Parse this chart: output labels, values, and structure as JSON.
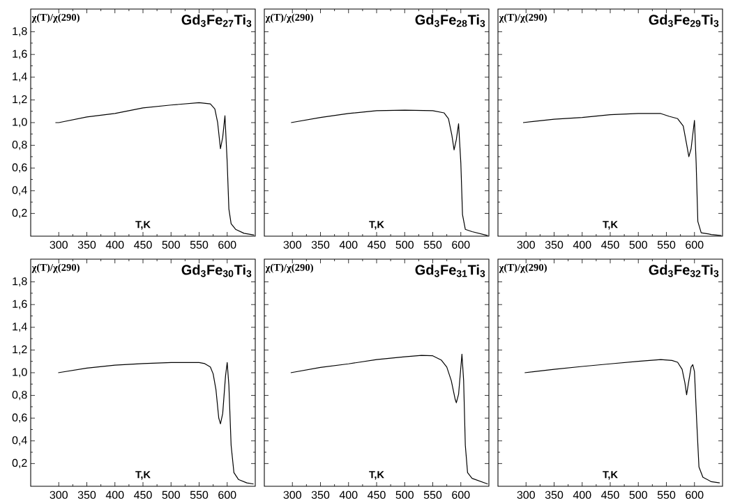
{
  "chart_data": [
    {
      "type": "line",
      "title": "Gd$_{3}$Fe$_{27}$Ti$_{3}$",
      "xlabel": "T,K",
      "ylabel": "χ(T)/χ(290)",
      "color": "#000000",
      "x": [
        294,
        300,
        350,
        400,
        450,
        500,
        550,
        560,
        570,
        578,
        583,
        588,
        592,
        596,
        600,
        603,
        607,
        615,
        630,
        648
      ],
      "values": [
        1.0,
        1.0,
        1.05,
        1.08,
        1.13,
        1.155,
        1.175,
        1.17,
        1.165,
        1.12,
        1.0,
        0.77,
        0.87,
        1.06,
        0.65,
        0.24,
        0.11,
        0.06,
        0.025,
        0.01
      ],
      "xlim": [
        250,
        650
      ],
      "ylim": [
        0,
        2
      ],
      "xticks": [
        300,
        350,
        400,
        450,
        500,
        550,
        600
      ],
      "yticks": [
        {
          "value": 0.2,
          "label": "0,2"
        },
        {
          "value": 0.4,
          "label": "0,4"
        },
        {
          "value": 0.6,
          "label": "0,6"
        },
        {
          "value": 0.8,
          "label": "0,8"
        },
        {
          "value": 1.0,
          "label": "1,0"
        },
        {
          "value": 1.2,
          "label": "1,2"
        },
        {
          "value": 1.4,
          "label": "1,4"
        },
        {
          "value": 1.6,
          "label": "1,6"
        },
        {
          "value": 1.8,
          "label": "1,8"
        }
      ]
    },
    {
      "type": "line",
      "title": "Gd$_{3}$Fe$_{28}$Ti$_{3}$",
      "xlabel": "T,K",
      "ylabel": "χ(T)/χ(290)",
      "color": "#000000",
      "x": [
        297.6,
        350,
        400,
        450,
        500,
        550,
        570,
        578,
        584,
        588,
        592,
        596,
        600,
        603,
        608,
        620,
        648
      ],
      "values": [
        1.0,
        1.045,
        1.08,
        1.105,
        1.11,
        1.105,
        1.086,
        1.035,
        0.89,
        0.76,
        0.85,
        0.99,
        0.645,
        0.19,
        0.06,
        0.04,
        0.005
      ],
      "xlim": [
        250,
        650
      ],
      "ylim": [
        0,
        2
      ],
      "xticks": [
        300,
        350,
        400,
        450,
        500,
        550,
        600
      ],
      "yticks": [
        {
          "value": 0.2,
          "label": null
        },
        {
          "value": 0.4,
          "label": null
        },
        {
          "value": 0.6,
          "label": null
        },
        {
          "value": 0.8,
          "label": null
        },
        {
          "value": 1.0,
          "label": null
        },
        {
          "value": 1.2,
          "label": null
        },
        {
          "value": 1.4,
          "label": null
        },
        {
          "value": 1.6,
          "label": null
        },
        {
          "value": 1.8,
          "label": null
        }
      ],
      "tick_labels": "x"
    },
    {
      "type": "line",
      "title": "Gd$_{3}$Fe$_{29}$Ti$_{3}$",
      "xlabel": "T,K",
      "ylabel": "χ(T)/χ(290)",
      "color": "#000000",
      "x": [
        294.7,
        350,
        400,
        450,
        500,
        540,
        555,
        570,
        580,
        586,
        590,
        594,
        600,
        603,
        606,
        612,
        630,
        648
      ],
      "values": [
        1.0,
        1.03,
        1.045,
        1.07,
        1.08,
        1.08,
        1.055,
        1.035,
        0.97,
        0.81,
        0.7,
        0.77,
        1.02,
        0.645,
        0.13,
        0.03,
        0.015,
        0.005
      ],
      "xlim": [
        250,
        650
      ],
      "ylim": [
        0,
        2
      ],
      "xticks": [
        300,
        350,
        400,
        450,
        500,
        550,
        600
      ],
      "yticks": [
        {
          "value": 0.2,
          "label": null
        },
        {
          "value": 0.4,
          "label": null
        },
        {
          "value": 0.6,
          "label": null
        },
        {
          "value": 0.8,
          "label": null
        },
        {
          "value": 1.0,
          "label": null
        },
        {
          "value": 1.2,
          "label": null
        },
        {
          "value": 1.4,
          "label": null
        },
        {
          "value": 1.6,
          "label": null
        },
        {
          "value": 1.8,
          "label": null
        }
      ],
      "tick_labels": "x"
    },
    {
      "type": "line",
      "title": "Gd$_{3}$Fe$_{30}$Ti$_{3}$",
      "xlabel": "T,K",
      "ylabel": "χ(T)/χ(290)",
      "color": "#000000",
      "x": [
        299,
        350,
        400,
        450,
        500,
        550,
        560,
        570,
        575,
        580,
        585,
        588,
        592,
        597,
        600,
        603,
        607,
        612,
        620,
        635,
        647
      ],
      "values": [
        1.0,
        1.04,
        1.067,
        1.08,
        1.09,
        1.09,
        1.08,
        1.05,
        0.99,
        0.85,
        0.6,
        0.55,
        0.64,
        0.97,
        1.09,
        0.89,
        0.36,
        0.12,
        0.06,
        0.03,
        0.02
      ],
      "xlim": [
        250,
        650
      ],
      "ylim": [
        0,
        2
      ],
      "xticks": [
        300,
        350,
        400,
        450,
        500,
        550,
        600
      ],
      "yticks": [
        {
          "value": 0.2,
          "label": "0,2"
        },
        {
          "value": 0.4,
          "label": "0,4"
        },
        {
          "value": 0.6,
          "label": "0,6"
        },
        {
          "value": 0.8,
          "label": "0,8"
        },
        {
          "value": 1.0,
          "label": "1,0"
        },
        {
          "value": 1.2,
          "label": "1,2"
        },
        {
          "value": 1.4,
          "label": "1,4"
        },
        {
          "value": 1.6,
          "label": "1,6"
        },
        {
          "value": 1.8,
          "label": "1,8"
        }
      ]
    },
    {
      "type": "line",
      "title": "Gd$_{3}$Fe$_{31}$Ti$_{3}$",
      "xlabel": "T,K",
      "ylabel": "χ(T)/χ(290)",
      "color": "#000000",
      "x": [
        297,
        350,
        400,
        450,
        500,
        530,
        550,
        565,
        575,
        583,
        590,
        592,
        596,
        602,
        605,
        608,
        612,
        620,
        648
      ],
      "values": [
        1.0,
        1.047,
        1.078,
        1.116,
        1.14,
        1.153,
        1.149,
        1.112,
        1.05,
        0.93,
        0.765,
        0.735,
        0.81,
        1.163,
        0.93,
        0.36,
        0.12,
        0.07,
        0.02
      ],
      "xlim": [
        250,
        650
      ],
      "ylim": [
        0,
        2
      ],
      "xticks": [
        300,
        350,
        400,
        450,
        500,
        550,
        600
      ],
      "yticks": [
        {
          "value": 0.2,
          "label": null
        },
        {
          "value": 0.4,
          "label": null
        },
        {
          "value": 0.6,
          "label": null
        },
        {
          "value": 0.8,
          "label": null
        },
        {
          "value": 1.0,
          "label": null
        },
        {
          "value": 1.2,
          "label": null
        },
        {
          "value": 1.4,
          "label": null
        },
        {
          "value": 1.6,
          "label": null
        },
        {
          "value": 1.8,
          "label": null
        }
      ],
      "tick_labels": "x"
    },
    {
      "type": "line",
      "title": "Gd$_{3}$Fe$_{32}$Ti$_{3}$",
      "xlabel": "T,K",
      "ylabel": "χ(T)/χ(290)",
      "color": "#000000",
      "x": [
        297.6,
        350,
        400,
        450,
        500,
        540,
        560,
        570,
        578,
        583,
        586,
        590,
        594,
        597,
        600,
        604,
        608,
        615,
        630,
        645
      ],
      "values": [
        1.0,
        1.03,
        1.055,
        1.078,
        1.1,
        1.116,
        1.108,
        1.092,
        1.03,
        0.91,
        0.806,
        0.93,
        1.05,
        1.071,
        1.01,
        0.57,
        0.17,
        0.08,
        0.04,
        0.03
      ],
      "xlim": [
        250,
        650
      ],
      "ylim": [
        0,
        2
      ],
      "xticks": [
        300,
        350,
        400,
        450,
        500,
        550,
        600
      ],
      "yticks": [
        {
          "value": 0.2,
          "label": null
        },
        {
          "value": 0.4,
          "label": null
        },
        {
          "value": 0.6,
          "label": null
        },
        {
          "value": 0.8,
          "label": null
        },
        {
          "value": 1.0,
          "label": null
        },
        {
          "value": 1.2,
          "label": null
        },
        {
          "value": 1.4,
          "label": null
        },
        {
          "value": 1.6,
          "label": null
        },
        {
          "value": 1.8,
          "label": null
        }
      ],
      "tick_labels": "x"
    }
  ]
}
